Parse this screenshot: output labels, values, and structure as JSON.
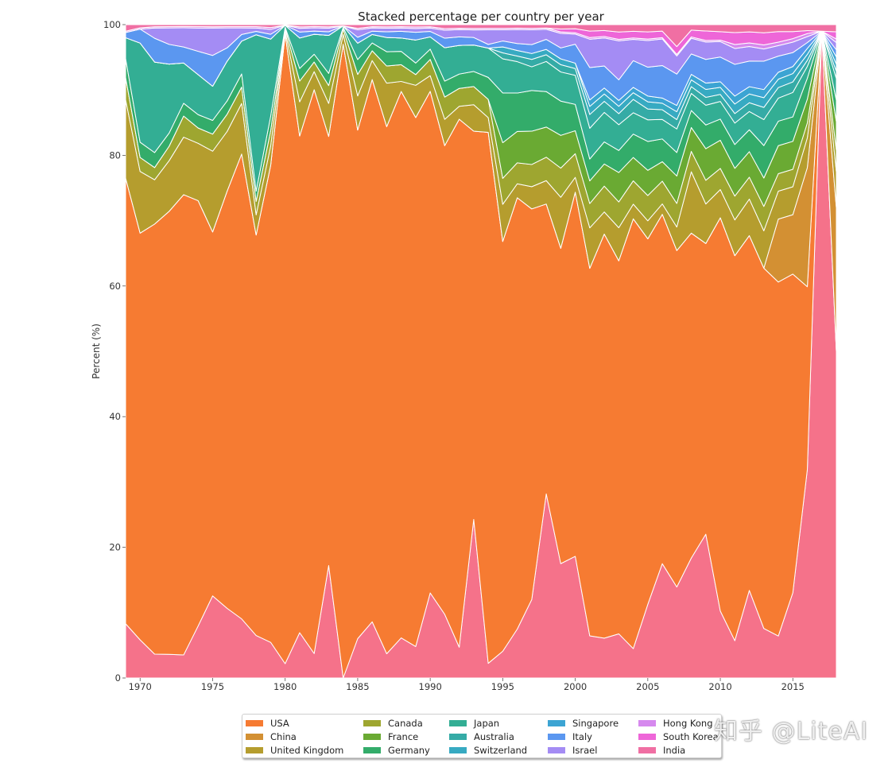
{
  "chart_data": {
    "type": "area",
    "stacked": true,
    "title": "Stacked percentage per country per year",
    "xlabel": "",
    "ylabel": "Percent (%)",
    "xlim": [
      1969,
      2018
    ],
    "ylim": [
      0,
      100
    ],
    "x_ticks": [
      1970,
      1975,
      1980,
      1985,
      1990,
      1995,
      2000,
      2005,
      2010,
      2015
    ],
    "y_ticks": [
      0,
      20,
      40,
      60,
      80,
      100
    ],
    "grid": false,
    "legend_position": "bottom-center",
    "x": [
      1969,
      1970,
      1971,
      1972,
      1973,
      1974,
      1975,
      1976,
      1977,
      1978,
      1979,
      1980,
      1981,
      1982,
      1983,
      1984,
      1985,
      1986,
      1987,
      1988,
      1989,
      1990,
      1991,
      1992,
      1993,
      1994,
      1995,
      1996,
      1997,
      1998,
      1999,
      2000,
      2001,
      2002,
      2003,
      2004,
      2005,
      2006,
      2007,
      2008,
      2009,
      2010,
      2011,
      2012,
      2013,
      2014,
      2015,
      2016,
      2017,
      2018
    ],
    "series": [
      {
        "name": "India",
        "color": "#f5728a",
        "values": [
          8.3,
          6,
          3.5,
          3.6,
          3.6,
          7.8,
          12,
          10.5,
          9,
          6.3,
          3.7,
          2.2,
          6.1,
          3.8,
          15.7,
          0,
          5.3,
          8.6,
          3.4,
          6,
          4.1,
          12.5,
          8,
          4.3,
          21,
          2,
          3.6,
          7,
          10.6,
          27.5,
          15.7,
          18,
          5.2,
          5.4,
          6,
          4.4,
          10.2,
          17.6,
          11.6,
          17.6,
          18.2,
          9.5,
          4.7,
          12,
          6.1,
          6,
          12.2,
          35,
          99,
          45.5
        ]
      },
      {
        "name": "USA",
        "color": "#f67b32",
        "values": [
          68.2,
          64,
          63.2,
          67.4,
          72,
          63.8,
          53.2,
          62.9,
          70.8,
          59.4,
          49.5,
          96.6,
          66.9,
          87.6,
          59.9,
          97,
          68.5,
          83,
          73.9,
          81.8,
          68.9,
          73.7,
          58.9,
          73.7,
          51.4,
          72.5,
          55.2,
          61.8,
          52.8,
          43.3,
          43.3,
          53.9,
          45.4,
          54.8,
          50.7,
          64.4,
          50.7,
          53.8,
          42.9,
          47.7,
          36.8,
          55.8,
          48.5,
          48.6,
          44.4,
          50.6,
          45.6,
          30.7,
          0,
          0
        ]
      },
      {
        "name": "China",
        "color": "#d39033",
        "values": [
          0,
          0,
          0,
          0,
          0,
          0,
          0,
          0,
          0,
          0,
          0,
          0,
          0,
          0,
          0,
          0,
          0,
          0,
          0,
          0,
          0,
          0,
          0,
          0,
          0,
          0,
          0,
          0,
          0,
          0,
          0,
          0,
          0,
          0,
          0,
          0,
          0,
          0,
          0,
          0,
          0,
          0,
          0,
          0,
          0,
          9,
          8.5,
          20,
          0,
          20
        ]
      },
      {
        "name": "United Kingdom",
        "color": "#b59d2e",
        "values": [
          12,
          9.7,
          6.5,
          7.7,
          9,
          8.6,
          11.8,
          9,
          7.7,
          3,
          2,
          0.5,
          4.6,
          2.8,
          4.6,
          1.5,
          4.6,
          2.9,
          6.1,
          1.5,
          4.2,
          2.3,
          3.3,
          1.8,
          3.5,
          2,
          5,
          2,
          3,
          3.5,
          7,
          2.2,
          5,
          3,
          4.5,
          2.2,
          2.5,
          1.6,
          3,
          9,
          5,
          4,
          4.5,
          5,
          4.6,
          4,
          4,
          5,
          0,
          5
        ]
      },
      {
        "name": "Canada",
        "color": "#9ea630",
        "values": [
          3.4,
          2.2,
          1.8,
          2.2,
          3.3,
          2.3,
          2.5,
          2.6,
          2.5,
          2,
          1.6,
          0.4,
          2.8,
          1.5,
          2.5,
          0.8,
          2.9,
          1.5,
          2.4,
          2.5,
          1.4,
          2.4,
          2.8,
          2.5,
          2.4,
          2.5,
          3.5,
          3,
          3,
          3.5,
          4,
          3.5,
          3,
          3.5,
          3.5,
          3.5,
          3.5,
          3.5,
          3,
          3,
          3,
          3,
          3,
          3,
          3,
          2.5,
          2.5,
          2.5,
          0,
          3
        ]
      },
      {
        "name": "France",
        "color": "#6aaa33",
        "values": [
          0,
          0,
          0,
          0,
          0,
          0,
          0,
          0,
          0,
          0,
          0,
          0,
          0,
          0,
          0,
          0,
          0,
          0,
          0,
          0,
          0,
          0,
          0,
          0,
          0,
          0,
          4.8,
          4.5,
          4.5,
          4.5,
          4.5,
          3.4,
          2.8,
          3,
          4,
          3.5,
          3.5,
          3,
          3.5,
          3.5,
          4,
          4,
          3.5,
          3.5,
          3.5,
          4,
          4,
          4,
          0,
          4
        ]
      },
      {
        "name": "Germany",
        "color": "#33ac6a",
        "values": [
          2.9,
          2.4,
          2.2,
          2,
          2,
          2,
          2,
          2,
          2,
          1.5,
          1.5,
          0.2,
          1.7,
          1.2,
          1.7,
          0.3,
          2,
          1.2,
          2,
          2,
          1.5,
          1.5,
          2,
          2,
          2,
          3,
          6.7,
          5.5,
          5.5,
          5.3,
          4.7,
          3.9,
          2.7,
          3,
          3,
          3.5,
          4,
          3.5,
          3,
          2.5,
          3,
          3,
          3,
          3,
          4,
          3.5,
          3.5,
          3.5,
          0,
          3
        ]
      },
      {
        "name": "Japan",
        "color": "#33ae94",
        "values": [
          3.2,
          15.6,
          13.3,
          10.5,
          6.3,
          6,
          5,
          6,
          5,
          23.2,
          8,
          0.3,
          4.1,
          3.1,
          5.3,
          0.2,
          2.2,
          1.3,
          2,
          2,
          3,
          1.8,
          4.2,
          4,
          3.5,
          4,
          4.6,
          4.5,
          3.2,
          4.5,
          4,
          4.3,
          3.8,
          4,
          3.5,
          3.2,
          3,
          3,
          3,
          2.5,
          2.5,
          2.5,
          2.7,
          2.5,
          3.2,
          3.3,
          3.5,
          2,
          0,
          3
        ]
      },
      {
        "name": "Australia",
        "color": "#35aba6",
        "values": [
          0,
          0,
          0,
          0,
          0,
          0,
          0,
          0,
          0,
          0,
          0,
          0,
          0,
          0,
          0,
          0,
          0,
          0,
          0,
          0,
          0,
          0,
          0,
          0,
          0,
          0,
          0.8,
          0.8,
          1,
          1,
          1,
          1,
          1.7,
          1.5,
          1.5,
          2,
          1.5,
          1.5,
          1.2,
          1,
          1,
          1,
          1.2,
          1.2,
          1.5,
          1.5,
          1.5,
          1,
          0,
          1
        ]
      },
      {
        "name": "Switzerland",
        "color": "#37aac2",
        "values": [
          0,
          0,
          0,
          0,
          0,
          0,
          0,
          0,
          0,
          0,
          0,
          0,
          0,
          0,
          0,
          0,
          0,
          0,
          0,
          0,
          0,
          0,
          0,
          0,
          0,
          0,
          0.8,
          0.8,
          0.8,
          0.8,
          0.8,
          0.8,
          1,
          1,
          1,
          1,
          1,
          1,
          1,
          1,
          1,
          1,
          1.2,
          1.2,
          1.2,
          1.2,
          1.2,
          1,
          0,
          1
        ]
      },
      {
        "name": "Singapore",
        "color": "#3ca4d3",
        "values": [
          0,
          0,
          0,
          0,
          0,
          0,
          0,
          0,
          0,
          0,
          0,
          0,
          0,
          0,
          0,
          0,
          0,
          0,
          0,
          0,
          0,
          0,
          0,
          0,
          0,
          0,
          0,
          0,
          0,
          0,
          0,
          0,
          0.8,
          0.8,
          0.8,
          0.8,
          0.8,
          0.8,
          0.8,
          0.8,
          0.8,
          0.8,
          1,
          1,
          1,
          1,
          1,
          1,
          0,
          1
        ]
      },
      {
        "name": "Italy",
        "color": "#5b97f0",
        "values": [
          0.8,
          2.2,
          3.5,
          3,
          2.5,
          3.5,
          4.5,
          2,
          1,
          0.5,
          0.5,
          0,
          0.8,
          0.5,
          0.5,
          0,
          0.8,
          0.5,
          0.8,
          1,
          1,
          0.8,
          1.2,
          1.2,
          1,
          0.5,
          0.8,
          1,
          1.2,
          1.5,
          1.5,
          2.8,
          4,
          3,
          2.8,
          4,
          4,
          5,
          4,
          3,
          3,
          3.5,
          4,
          3.5,
          3.5,
          2.3,
          2,
          1,
          0,
          1
        ]
      },
      {
        "name": "Israel",
        "color": "#a48cf4",
        "values": [
          0,
          0,
          1.5,
          2.5,
          3,
          3.5,
          4,
          3,
          1,
          0.5,
          0.5,
          0,
          0.5,
          0.5,
          0.5,
          0,
          1,
          0.5,
          0.5,
          0.5,
          0.5,
          0.5,
          1,
          1,
          1,
          2,
          1.5,
          2,
          2,
          1.5,
          2,
          1.5,
          3.5,
          3.8,
          5.3,
          3.2,
          3.7,
          4.1,
          2.3,
          2.3,
          2.2,
          2.2,
          2,
          2,
          1.5,
          1.5,
          1.5,
          1,
          0,
          1
        ]
      },
      {
        "name": "Hong Kong",
        "color": "#d689ee",
        "values": [
          0.2,
          0.2,
          0.2,
          0.2,
          0.2,
          0.2,
          0.2,
          0.2,
          0.2,
          0.2,
          0.2,
          0,
          0.2,
          0.2,
          0.2,
          0,
          0.2,
          0.2,
          0.2,
          0.2,
          0.2,
          0.2,
          0.2,
          0.2,
          0.2,
          0.2,
          0.2,
          0.2,
          0.2,
          0.2,
          0.2,
          0.2,
          0.2,
          0.2,
          0.2,
          0.2,
          0.2,
          0.2,
          0.2,
          0.2,
          0.2,
          0.2,
          0.5,
          0.5,
          0.5,
          0.5,
          0.5,
          0.5,
          0,
          0.5
        ]
      },
      {
        "name": "South Korea",
        "color": "#ee66d8",
        "values": [
          0,
          0,
          0,
          0,
          0,
          0,
          0,
          0,
          0,
          0,
          0,
          0,
          0,
          0,
          0,
          0,
          0,
          0,
          0,
          0,
          0,
          0,
          0,
          0,
          0,
          0,
          0,
          0,
          0,
          0,
          0.4,
          0.6,
          0.8,
          0.8,
          1,
          1,
          1,
          1,
          1,
          1,
          1.2,
          1.2,
          1.5,
          1.5,
          1.5,
          1.5,
          1,
          0.5,
          0,
          1
        ]
      },
      {
        "name": "India",
        "color": "#f06fa3",
        "values": [
          1,
          0.5,
          0.3,
          0.3,
          0.3,
          0.3,
          0.3,
          0.3,
          0.3,
          0.3,
          0.3,
          0.1,
          0.3,
          0.3,
          0.3,
          0.2,
          0.5,
          0.3,
          0.3,
          0.3,
          0.3,
          0.3,
          0.5,
          0.5,
          0.5,
          0.5,
          0.5,
          0.5,
          0.5,
          0.5,
          0.6,
          0.6,
          0.8,
          0.8,
          1,
          1,
          1,
          1,
          2.8,
          0.8,
          0.8,
          1,
          1,
          1,
          1,
          1,
          1,
          1,
          1,
          1
        ]
      }
    ]
  },
  "legend": {
    "items": [
      {
        "label": "USA",
        "color": "#f67b32"
      },
      {
        "label": "China",
        "color": "#d39033"
      },
      {
        "label": "United Kingdom",
        "color": "#b59d2e"
      },
      {
        "label": "Canada",
        "color": "#9ea630"
      },
      {
        "label": "France",
        "color": "#6aaa33"
      },
      {
        "label": "Germany",
        "color": "#33ac6a"
      },
      {
        "label": "Japan",
        "color": "#33ae94"
      },
      {
        "label": "Australia",
        "color": "#35aba6"
      },
      {
        "label": "Switzerland",
        "color": "#37aac2"
      },
      {
        "label": "Singapore",
        "color": "#3ca4d3"
      },
      {
        "label": "Italy",
        "color": "#5b97f0"
      },
      {
        "label": "Israel",
        "color": "#a48cf4"
      },
      {
        "label": "Hong Kong",
        "color": "#d689ee"
      },
      {
        "label": "South Korea",
        "color": "#ee66d8"
      },
      {
        "label": "India",
        "color": "#f06fa3"
      }
    ]
  },
  "watermark": "知乎 @LiteAI"
}
